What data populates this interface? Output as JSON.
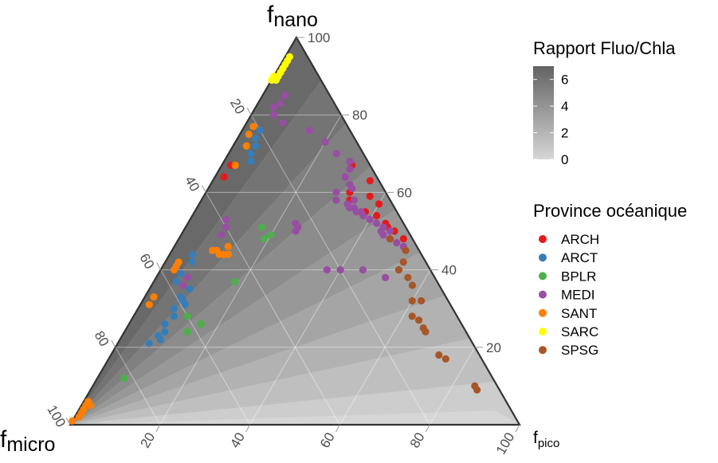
{
  "chart_data": {
    "type": "scatter",
    "subtype": "ternary",
    "axes": {
      "top": {
        "label_main": "f",
        "label_sub": "nano"
      },
      "left": {
        "label_main": "f",
        "label_sub": "micro"
      },
      "right": {
        "label_main": "f",
        "label_sub": "pico"
      }
    },
    "ticks": {
      "nano": [
        "20",
        "40",
        "60",
        "80",
        "100"
      ],
      "pico": [
        "20",
        "40",
        "60",
        "80",
        "100"
      ],
      "micro": [
        "20",
        "40",
        "60",
        "80",
        "100"
      ]
    },
    "colorbar": {
      "title": "Rapport Fluo/Chla",
      "ticks": [
        "6",
        "4",
        "2",
        "0"
      ],
      "range": [
        0,
        7
      ],
      "color_low": "#d6d6d6",
      "color_high": "#636363"
    },
    "legend": {
      "title": "Province océanique",
      "placement": "right"
    },
    "series": [
      {
        "name": "ARCH",
        "color": "#e41a1c",
        "points": [
          [
            64,
            2,
            34
          ],
          [
            67,
            2,
            31
          ],
          [
            57,
            40,
            3
          ],
          [
            59,
            37,
            4
          ],
          [
            63,
            35,
            2
          ],
          [
            67,
            29,
            4
          ],
          [
            58,
            33,
            9
          ],
          [
            55,
            38,
            7
          ],
          [
            52,
            44,
            4
          ],
          [
            50,
            47,
            3
          ],
          [
            51,
            45,
            4
          ],
          [
            54,
            41,
            5
          ],
          [
            60,
            32,
            8
          ],
          [
            48,
            50,
            2
          ]
        ]
      },
      {
        "name": "ARCT",
        "color": "#377eb8",
        "points": [
          [
            76,
            4,
            20
          ],
          [
            74,
            4,
            22
          ],
          [
            72,
            5,
            23
          ],
          [
            70,
            5,
            25
          ],
          [
            68,
            6,
            26
          ],
          [
            37,
            5,
            58
          ],
          [
            39,
            5,
            56
          ],
          [
            42,
            6,
            52
          ],
          [
            44,
            5,
            51
          ],
          [
            33,
            8,
            59
          ],
          [
            32,
            9,
            59
          ],
          [
            31,
            10,
            59
          ],
          [
            35,
            9,
            56
          ],
          [
            30,
            8,
            62
          ],
          [
            28,
            9,
            63
          ],
          [
            26,
            8,
            66
          ],
          [
            24,
            9,
            67
          ],
          [
            23,
            8,
            69
          ],
          [
            22,
            9,
            69
          ],
          [
            21,
            7,
            72
          ]
        ]
      },
      {
        "name": "BPLR",
        "color": "#4daf4a",
        "points": [
          [
            51,
            17,
            32
          ],
          [
            49,
            20,
            31
          ],
          [
            48,
            19,
            33
          ],
          [
            37,
            18,
            45
          ],
          [
            28,
            12,
            60
          ],
          [
            26,
            16,
            58
          ],
          [
            24,
            14,
            62
          ],
          [
            12,
            6,
            82
          ]
        ]
      },
      {
        "name": "MEDI",
        "color": "#984ea3",
        "points": [
          [
            85,
            5,
            10
          ],
          [
            83,
            5,
            12
          ],
          [
            82,
            4,
            14
          ],
          [
            80,
            5,
            15
          ],
          [
            78,
            8,
            14
          ],
          [
            76,
            15,
            9
          ],
          [
            73,
            20,
            7
          ],
          [
            70,
            24,
            6
          ],
          [
            68,
            28,
            4
          ],
          [
            66,
            29,
            5
          ],
          [
            64,
            29,
            7
          ],
          [
            61,
            32,
            7
          ],
          [
            60,
            29,
            11
          ],
          [
            58,
            30,
            12
          ],
          [
            57,
            33,
            10
          ],
          [
            56,
            34,
            10
          ],
          [
            56,
            35,
            9
          ],
          [
            55,
            36,
            9
          ],
          [
            54,
            38,
            8
          ],
          [
            53,
            40,
            7
          ],
          [
            52,
            42,
            6
          ],
          [
            51,
            44,
            5
          ],
          [
            50,
            46,
            4
          ],
          [
            49,
            45,
            6
          ],
          [
            62,
            31,
            7
          ],
          [
            58,
            34,
            8
          ],
          [
            55,
            37,
            8
          ],
          [
            50,
            44,
            6
          ],
          [
            48,
            47,
            5
          ],
          [
            47,
            49,
            4
          ],
          [
            46,
            51,
            3
          ],
          [
            40,
            37,
            23
          ],
          [
            40,
            40,
            20
          ],
          [
            40,
            45,
            15
          ],
          [
            38,
            51,
            11
          ],
          [
            52,
            24,
            24
          ],
          [
            51,
            25,
            24
          ],
          [
            50,
            25,
            25
          ],
          [
            38,
            7,
            55
          ],
          [
            36,
            7,
            57
          ],
          [
            49,
            9,
            42
          ],
          [
            51,
            9,
            40
          ],
          [
            53,
            8,
            39
          ]
        ]
      },
      {
        "name": "SANT",
        "color": "#ff7f00",
        "points": [
          [
            77,
            2,
            21
          ],
          [
            75,
            2,
            23
          ],
          [
            72,
            3,
            25
          ],
          [
            67,
            3,
            30
          ],
          [
            42,
            3,
            55
          ],
          [
            41,
            3,
            56
          ],
          [
            40,
            3,
            57
          ],
          [
            33,
            2,
            65
          ],
          [
            31,
            2,
            67
          ],
          [
            45,
            9,
            46
          ],
          [
            45,
            10,
            45
          ],
          [
            46,
            12,
            42
          ],
          [
            44,
            13,
            43
          ],
          [
            44,
            12,
            44
          ],
          [
            44,
            11,
            45
          ],
          [
            5,
            1,
            94
          ],
          [
            4,
            1,
            95
          ],
          [
            3,
            1,
            96
          ],
          [
            2,
            1,
            97
          ],
          [
            6,
            1,
            93
          ],
          [
            5,
            2,
            93
          ],
          [
            1,
            0,
            99
          ]
        ]
      },
      {
        "name": "SARC",
        "color": "#ffff00",
        "points": [
          [
            95,
            1,
            4
          ],
          [
            94,
            1,
            5
          ],
          [
            93,
            1,
            6
          ],
          [
            92,
            1,
            7
          ],
          [
            91,
            1,
            8
          ],
          [
            90,
            0,
            10
          ],
          [
            89,
            1,
            10
          ],
          [
            90,
            1,
            9
          ],
          [
            89,
            0,
            11
          ]
        ]
      },
      {
        "name": "SPSG",
        "color": "#a65628",
        "points": [
          [
            48,
            47,
            5
          ],
          [
            45,
            52,
            3
          ],
          [
            42,
            53,
            5
          ],
          [
            40,
            53,
            7
          ],
          [
            38,
            56,
            6
          ],
          [
            36,
            58,
            6
          ],
          [
            32,
            60,
            8
          ],
          [
            32,
            62,
            6
          ],
          [
            28,
            62,
            10
          ],
          [
            27,
            64,
            9
          ],
          [
            25,
            66,
            9
          ],
          [
            24,
            67,
            9
          ],
          [
            18,
            73,
            9
          ],
          [
            17,
            75,
            8
          ],
          [
            10,
            85,
            5
          ],
          [
            9,
            86,
            5
          ]
        ]
      }
    ]
  }
}
